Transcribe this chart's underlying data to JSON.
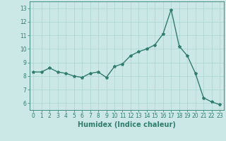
{
  "x": [
    0,
    1,
    2,
    3,
    4,
    5,
    6,
    7,
    8,
    9,
    10,
    11,
    12,
    13,
    14,
    15,
    16,
    17,
    18,
    19,
    20,
    21,
    22,
    23
  ],
  "y": [
    8.3,
    8.3,
    8.6,
    8.3,
    8.2,
    8.0,
    7.9,
    8.2,
    8.3,
    7.9,
    8.7,
    8.9,
    9.5,
    9.8,
    10.0,
    10.3,
    11.1,
    12.9,
    10.2,
    9.5,
    8.2,
    6.4,
    6.1,
    5.9
  ],
  "line_color": "#2e7d6e",
  "marker": "*",
  "marker_size": 3,
  "bg_color": "#cce8e6",
  "grid_color": "#aad4d0",
  "xlabel": "Humidex (Indice chaleur)",
  "ylim": [
    5.5,
    13.5
  ],
  "yticks": [
    6,
    7,
    8,
    9,
    10,
    11,
    12,
    13
  ],
  "xticks": [
    0,
    1,
    2,
    3,
    4,
    5,
    6,
    7,
    8,
    9,
    10,
    11,
    12,
    13,
    14,
    15,
    16,
    17,
    18,
    19,
    20,
    21,
    22,
    23
  ],
  "tick_label_fontsize": 5.5,
  "xlabel_fontsize": 7.0,
  "line_width": 1.0
}
